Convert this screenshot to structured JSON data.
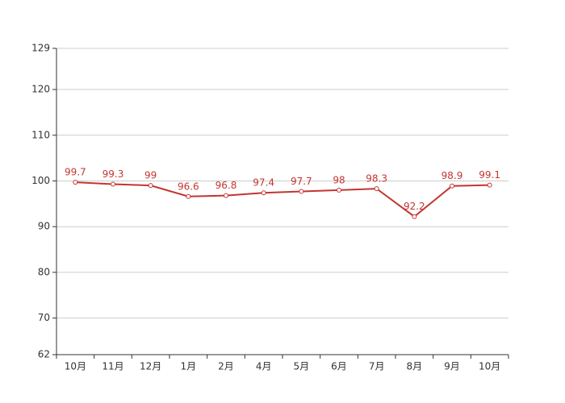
{
  "chart_data": {
    "type": "line",
    "categories": [
      "10月",
      "11月",
      "12月",
      "1月",
      "2月",
      "4月",
      "5月",
      "6月",
      "7月",
      "8月",
      "9月",
      "10月"
    ],
    "values": [
      99.7,
      99.3,
      99,
      96.6,
      96.8,
      97.4,
      97.7,
      98,
      98.3,
      92.2,
      98.9,
      99.1
    ],
    "color": "#c23531",
    "ylim": [
      62,
      129
    ],
    "yticks": [
      62,
      70,
      80,
      90,
      100,
      110,
      120,
      129
    ],
    "grid": true
  }
}
